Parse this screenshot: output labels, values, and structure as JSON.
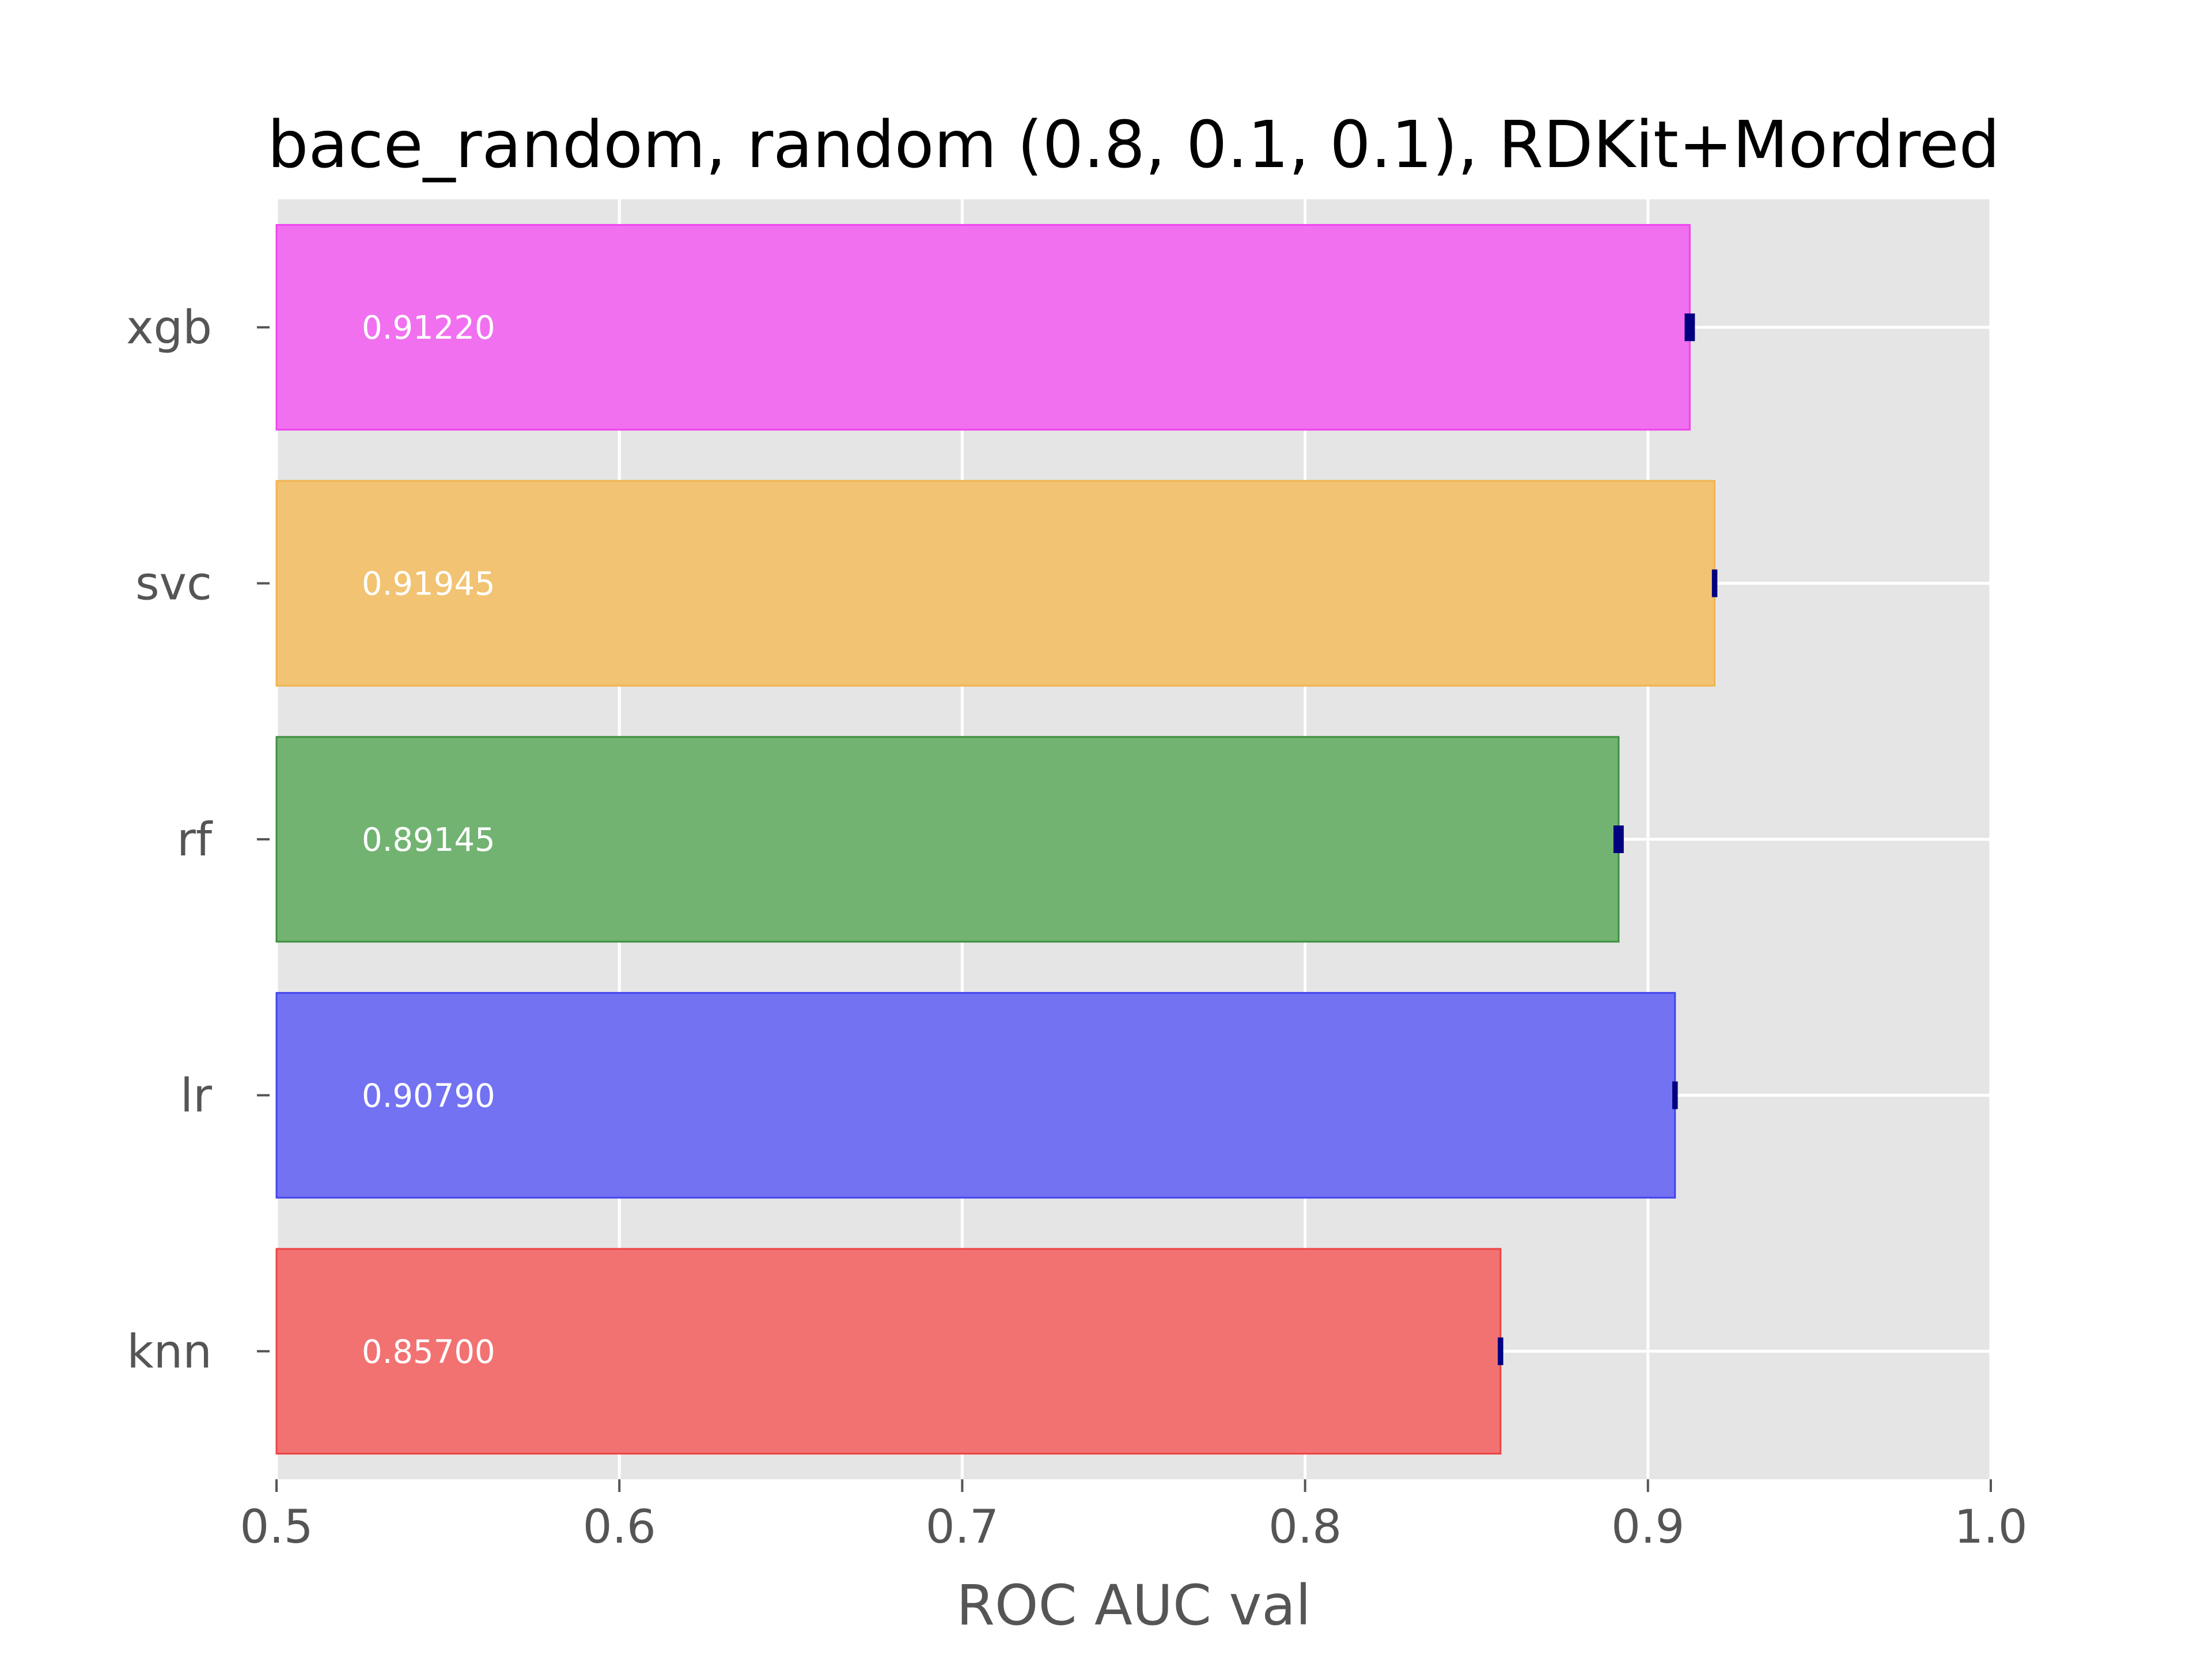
{
  "chart_data": {
    "type": "bar",
    "orientation": "horizontal",
    "title": "bace_random, random (0.8, 0.1, 0.1), RDKit+Mordred",
    "xlabel": "ROC AUC val",
    "ylabel": "",
    "xlim": [
      0.5,
      1.0
    ],
    "xticks": [
      "0.5",
      "0.6",
      "0.7",
      "0.8",
      "0.9",
      "1.0"
    ],
    "grid": true,
    "legend": "none",
    "background_color": "#e5e5e5",
    "error_bar_color": "#000080",
    "categories": [
      "xgb",
      "svc",
      "rf",
      "lr",
      "knn"
    ],
    "values": [
      0.9122,
      0.91945,
      0.89145,
      0.9079,
      0.857
    ],
    "value_labels": [
      "0.91220",
      "0.91945",
      "0.89145",
      "0.90790",
      "0.85700"
    ],
    "errors": [
      0.0015,
      0.0008,
      0.0015,
      0.0008,
      0.0008
    ],
    "colors": [
      "#f070f0",
      "#f2c372",
      "#72b372",
      "#7272f2",
      "#f27272"
    ],
    "edge_colors": [
      "#ee44ee",
      "#f0b450",
      "#3f8f3f",
      "#4444ee",
      "#ee4444"
    ]
  }
}
